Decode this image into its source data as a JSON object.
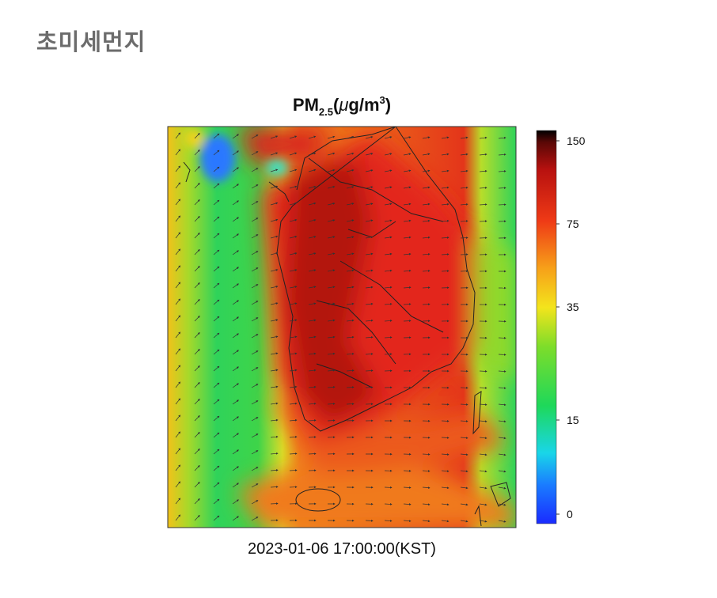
{
  "header": {
    "title": "초미세먼지"
  },
  "map": {
    "title": {
      "base": "PM",
      "subscript": "2.5",
      "unit_open": "(",
      "unit_mu": "μ",
      "unit_rest": "g/m",
      "superscript": "3",
      "unit_close": ")"
    },
    "timestamp": "2023-01-06 17:00:00(KST)",
    "colorbar_ticks": [
      150,
      75,
      35,
      15,
      0
    ]
  }
}
